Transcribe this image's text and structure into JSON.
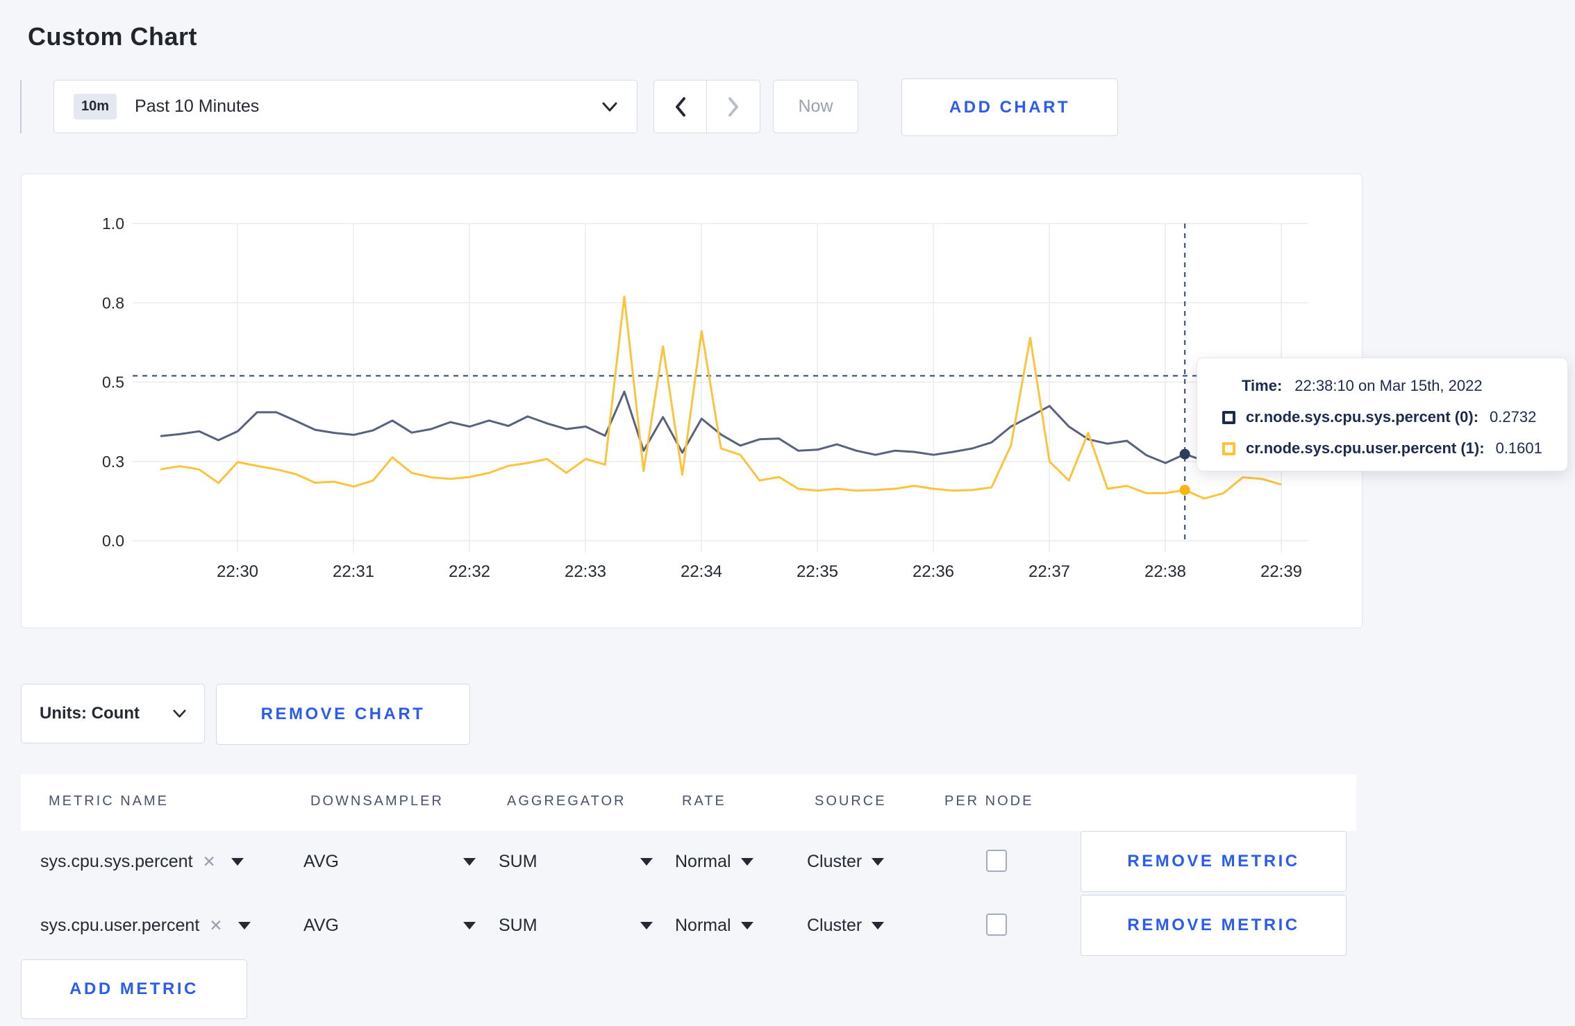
{
  "page": {
    "title": "Custom Chart"
  },
  "toolbar": {
    "time_window_badge": "10m",
    "time_window_label": "Past 10 Minutes",
    "now_label": "Now",
    "add_chart_label": "ADD CHART"
  },
  "chart_data": {
    "type": "line",
    "title": "",
    "xlabel": "",
    "ylabel": "",
    "ylim": [
      0,
      1
    ],
    "grid": true,
    "y_ticks": [
      {
        "value": 0.0,
        "label": "0.0"
      },
      {
        "value": 0.25,
        "label": "0.3"
      },
      {
        "value": 0.5,
        "label": "0.5"
      },
      {
        "value": 0.75,
        "label": "0.8"
      },
      {
        "value": 1.0,
        "label": "1.0"
      }
    ],
    "x_ticks": [
      "22:30",
      "22:31",
      "22:32",
      "22:33",
      "22:34",
      "22:35",
      "22:36",
      "22:37",
      "22:38",
      "22:39"
    ],
    "times": [
      "22:29:20",
      "22:29:30",
      "22:29:40",
      "22:29:50",
      "22:30:00",
      "22:30:10",
      "22:30:20",
      "22:30:30",
      "22:30:40",
      "22:30:50",
      "22:31:00",
      "22:31:10",
      "22:31:20",
      "22:31:30",
      "22:31:40",
      "22:31:50",
      "22:32:00",
      "22:32:10",
      "22:32:20",
      "22:32:30",
      "22:32:40",
      "22:32:50",
      "22:33:00",
      "22:33:10",
      "22:33:20",
      "22:33:30",
      "22:33:40",
      "22:33:50",
      "22:34:00",
      "22:34:10",
      "22:34:20",
      "22:34:30",
      "22:34:40",
      "22:34:50",
      "22:35:00",
      "22:35:10",
      "22:35:20",
      "22:35:30",
      "22:35:40",
      "22:35:50",
      "22:36:00",
      "22:36:10",
      "22:36:20",
      "22:36:30",
      "22:36:40",
      "22:36:50",
      "22:37:00",
      "22:37:10",
      "22:37:20",
      "22:37:30",
      "22:37:40",
      "22:37:50",
      "22:38:00",
      "22:38:10",
      "22:38:20",
      "22:38:30",
      "22:38:40",
      "22:38:50",
      "22:39:00"
    ],
    "series": [
      {
        "name": "cr.node.sys.cpu.sys.percent (0)",
        "color": "#56627e",
        "dot_color": "#2e3d5d",
        "values": [
          0.33,
          0.336,
          0.345,
          0.317,
          0.345,
          0.405,
          0.405,
          0.378,
          0.35,
          0.34,
          0.334,
          0.348,
          0.379,
          0.341,
          0.352,
          0.374,
          0.36,
          0.379,
          0.362,
          0.392,
          0.37,
          0.352,
          0.36,
          0.331,
          0.47,
          0.284,
          0.39,
          0.278,
          0.385,
          0.335,
          0.3,
          0.32,
          0.322,
          0.284,
          0.287,
          0.304,
          0.284,
          0.271,
          0.284,
          0.28,
          0.271,
          0.28,
          0.291,
          0.31,
          0.36,
          0.392,
          0.425,
          0.36,
          0.32,
          0.306,
          0.315,
          0.27,
          0.245,
          0.2732,
          0.252,
          0.27,
          0.29,
          0.28,
          0.29
        ]
      },
      {
        "name": "cr.node.sys.cpu.user.percent (1)",
        "color": "#fcc43e",
        "dot_color": "#f5b512",
        "values": [
          0.225,
          0.235,
          0.225,
          0.182,
          0.248,
          0.236,
          0.225,
          0.21,
          0.183,
          0.186,
          0.171,
          0.19,
          0.263,
          0.214,
          0.2,
          0.195,
          0.201,
          0.214,
          0.236,
          0.245,
          0.258,
          0.214,
          0.258,
          0.24,
          0.77,
          0.22,
          0.613,
          0.208,
          0.661,
          0.291,
          0.271,
          0.19,
          0.201,
          0.164,
          0.158,
          0.164,
          0.158,
          0.16,
          0.164,
          0.173,
          0.164,
          0.158,
          0.16,
          0.168,
          0.3,
          0.64,
          0.25,
          0.19,
          0.34,
          0.164,
          0.173,
          0.15,
          0.15,
          0.1601,
          0.133,
          0.15,
          0.2,
          0.195,
          0.177
        ]
      }
    ],
    "crosshair": {
      "index": 53,
      "time": "22:38:10",
      "y_value": 0.52
    },
    "legend_position": "tooltip"
  },
  "tooltip": {
    "time_label": "Time:",
    "time_value": "22:38:10 on Mar 15th, 2022",
    "rows": [
      {
        "label": "cr.node.sys.cpu.sys.percent (0):",
        "value": "0.2732",
        "color": "#1b2a4e"
      },
      {
        "label": "cr.node.sys.cpu.user.percent (1):",
        "value": "0.1601",
        "color": "#fec32f"
      }
    ]
  },
  "chart_footer": {
    "units_label": "Units: Count",
    "remove_chart_label": "REMOVE CHART"
  },
  "metrics_table": {
    "headers": [
      "METRIC NAME",
      "DOWNSAMPLER",
      "AGGREGATOR",
      "RATE",
      "SOURCE",
      "PER NODE"
    ],
    "rows": [
      {
        "metric": "sys.cpu.sys.percent",
        "downsampler": "AVG",
        "aggregator": "SUM",
        "rate": "Normal",
        "source": "Cluster",
        "per_node_checked": false,
        "remove_label": "REMOVE METRIC"
      },
      {
        "metric": "sys.cpu.user.percent",
        "downsampler": "AVG",
        "aggregator": "SUM",
        "rate": "Normal",
        "source": "Cluster",
        "per_node_checked": false,
        "remove_label": "REMOVE METRIC"
      }
    ],
    "add_metric_label": "ADD METRIC"
  },
  "colors": {
    "accent_blue": "#2b5cf0",
    "series_sys": "#56627e",
    "series_user": "#fcc43e",
    "page_bg": "#f4f6fa"
  }
}
